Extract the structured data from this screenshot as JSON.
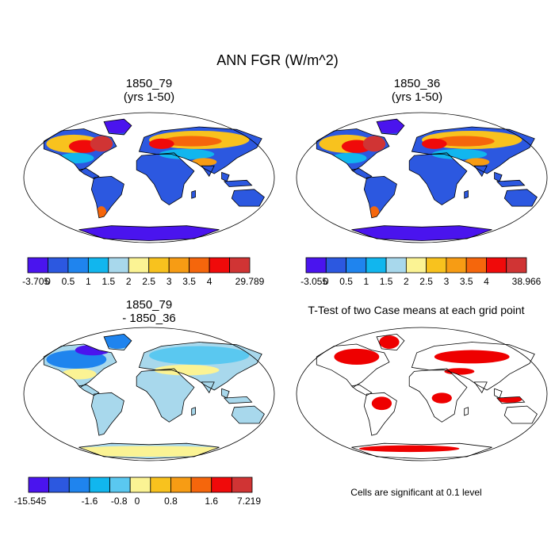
{
  "figure": {
    "title": "ANN FGR (W/m^2)",
    "note": "Cells are significant at 0.1 level"
  },
  "panels": [
    {
      "id": "p1",
      "title_line1": "1850_79",
      "title_line2": "(yrs 1-50)"
    },
    {
      "id": "p2",
      "title_line1": "1850_36",
      "title_line2": "(yrs 1-50)"
    },
    {
      "id": "p3",
      "title_line1": "1850_79",
      "title_line2": "- 1850_36"
    },
    {
      "id": "p4",
      "title_line1": "T-Test of two Case means at each grid point",
      "title_line2": ""
    }
  ],
  "chart_data": [
    {
      "type": "heatmap",
      "title": "1850_79 (yrs 1-50)",
      "colorbar": {
        "labels": [
          "-3.705",
          "0",
          "0.5",
          "1",
          "1.5",
          "2",
          "2.5",
          "3",
          "3.5",
          "4",
          "29.789"
        ],
        "colors": [
          "#4a14ee",
          "#2c58e0",
          "#1f84ee",
          "#11b6ee",
          "#a8d8ec",
          "#fbf394",
          "#f8c21e",
          "#f79c14",
          "#f5660c",
          "#f00a0a",
          "#d03434"
        ]
      }
    },
    {
      "type": "heatmap",
      "title": "1850_36 (yrs 1-50)",
      "colorbar": {
        "labels": [
          "-3.055",
          "0",
          "0.5",
          "1",
          "1.5",
          "2",
          "2.5",
          "3",
          "3.5",
          "4",
          "38.966"
        ],
        "colors": [
          "#4a14ee",
          "#2c58e0",
          "#1f84ee",
          "#11b6ee",
          "#a8d8ec",
          "#fbf394",
          "#f8c21e",
          "#f79c14",
          "#f5660c",
          "#f00a0a",
          "#d03434"
        ]
      }
    },
    {
      "type": "heatmap",
      "title": "1850_79 - 1850_36",
      "colorbar": {
        "labels": [
          "-15.545",
          "-1.6",
          "-0.8",
          "0",
          "0.8",
          "1.6",
          "7.219"
        ],
        "colors": [
          "#4a14ee",
          "#2c58e0",
          "#1f84ee",
          "#11b6ee",
          "#5ac8f0",
          "#fbf394",
          "#f8c21e",
          "#f79c14",
          "#f5660c",
          "#f00a0a",
          "#d03434"
        ]
      }
    },
    {
      "type": "heatmap",
      "title": "T-Test of two Case means at each grid point",
      "significance_color": "#ee0000"
    }
  ]
}
